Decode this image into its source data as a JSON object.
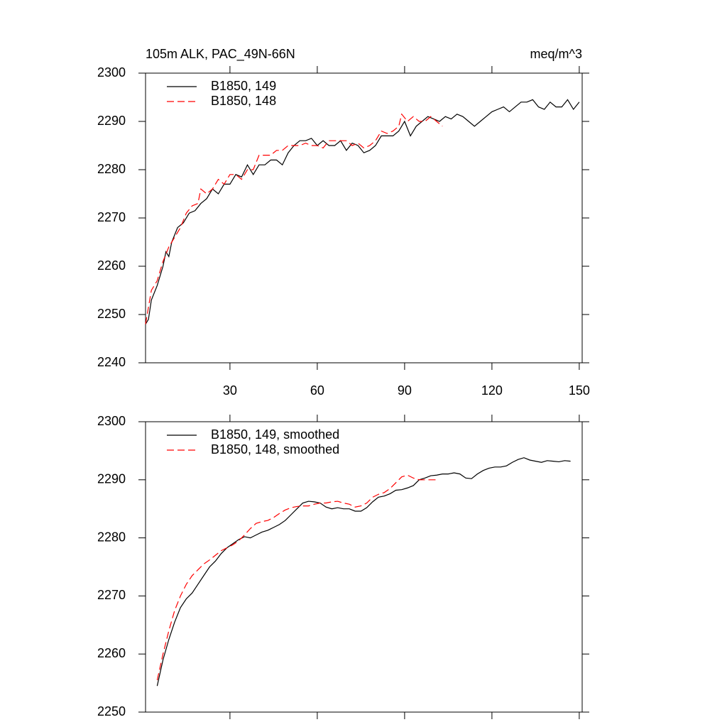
{
  "chart_data": [
    {
      "type": "line",
      "title": "105m ALK, PAC_49N-66N",
      "units": "meq/m^3",
      "legend": "top-left",
      "xlim": [
        1,
        151
      ],
      "xticks": [
        30,
        60,
        90,
        120,
        150
      ],
      "ylim": [
        2240,
        2300
      ],
      "yticks": [
        2240,
        2250,
        2260,
        2270,
        2280,
        2290,
        2300
      ],
      "series": [
        {
          "name": "B1850, 149",
          "color": "#000000",
          "dash": "solid",
          "x": [
            1,
            2,
            3,
            5,
            7,
            8,
            9,
            10,
            12,
            14,
            16,
            18,
            20,
            22,
            24,
            26,
            28,
            30,
            32,
            34,
            36,
            38,
            40,
            42,
            44,
            46,
            48,
            50,
            52,
            54,
            56,
            58,
            60,
            62,
            64,
            66,
            68,
            70,
            72,
            74,
            76,
            78,
            80,
            82,
            84,
            86,
            88,
            90,
            92,
            94,
            96,
            98,
            100,
            102,
            104,
            106,
            108,
            110,
            112,
            114,
            116,
            118,
            120,
            122,
            124,
            126,
            128,
            130,
            132,
            134,
            136,
            138,
            140,
            142,
            144,
            146,
            148,
            150
          ],
          "values": [
            2248,
            2249,
            2253,
            2256,
            2260,
            2263,
            2262,
            2265,
            2268,
            2269,
            2271,
            2271.5,
            2273,
            2274,
            2276,
            2275,
            2277,
            2277,
            2279,
            2278.5,
            2281,
            2279,
            2281,
            2281,
            2282,
            2282,
            2281,
            2283.5,
            2285,
            2286,
            2286,
            2286.5,
            2285,
            2286,
            2285,
            2285,
            2286,
            2284,
            2285.5,
            2285,
            2283.5,
            2284,
            2285,
            2287,
            2287,
            2287,
            2288,
            2290,
            2287,
            2289,
            2290,
            2291,
            2290.5,
            2290,
            2291,
            2290.5,
            2291.5,
            2291,
            2290,
            2289,
            2290,
            2291,
            2292,
            2292.5,
            2293,
            2292,
            2293,
            2294,
            2294,
            2294.5,
            2293,
            2292.5,
            2294,
            2293,
            2293,
            2294.5,
            2292.5,
            2294
          ]
        },
        {
          "name": "B1850, 148",
          "color": "#ff0000",
          "dash": "dashed",
          "x": [
            1,
            3,
            5,
            7,
            9,
            11,
            13,
            15,
            17,
            19,
            20,
            22,
            24,
            26,
            28,
            30,
            32,
            34,
            36,
            38,
            40,
            42,
            44,
            46,
            48,
            50,
            52,
            54,
            56,
            58,
            60,
            62,
            64,
            66,
            68,
            70,
            72,
            74,
            76,
            78,
            80,
            82,
            84,
            86,
            88,
            89,
            91,
            93,
            95,
            97,
            99,
            101,
            103
          ],
          "values": [
            2248,
            2255,
            2257,
            2261,
            2264,
            2266,
            2268,
            2271,
            2272.5,
            2273,
            2276,
            2275,
            2276,
            2278,
            2277,
            2279,
            2279,
            2278,
            2280,
            2280,
            2283,
            2283,
            2283,
            2284,
            2284,
            2285,
            2285,
            2285,
            2285.5,
            2285,
            2285,
            2284.5,
            2286,
            2286,
            2286,
            2286,
            2285,
            2285.5,
            2284.5,
            2285,
            2286,
            2288,
            2287.5,
            2288,
            2289,
            2291.5,
            2290,
            2291,
            2290,
            2290,
            2291,
            2290,
            2289
          ]
        }
      ]
    },
    {
      "type": "line",
      "legend": "top-left",
      "xlim": [
        1,
        151
      ],
      "xticks": [
        30,
        60,
        90,
        120,
        150
      ],
      "ylim": [
        2250,
        2300
      ],
      "yticks": [
        2250,
        2260,
        2270,
        2280,
        2290,
        2300
      ],
      "series": [
        {
          "name": "B1850, 149, smoothed",
          "color": "#000000",
          "dash": "solid",
          "x": [
            5,
            7,
            9,
            11,
            13,
            15,
            17,
            19,
            21,
            23,
            25,
            27,
            29,
            31,
            33,
            35,
            37,
            39,
            41,
            43,
            45,
            47,
            49,
            51,
            53,
            55,
            57,
            59,
            61,
            63,
            65,
            67,
            69,
            71,
            73,
            75,
            77,
            79,
            81,
            83,
            85,
            87,
            89,
            91,
            93,
            95,
            97,
            99,
            101,
            103,
            105,
            107,
            109,
            111,
            113,
            115,
            117,
            119,
            121,
            123,
            125,
            127,
            129,
            131,
            133,
            135,
            137,
            139,
            141,
            143,
            145,
            147
          ],
          "values": [
            2254.5,
            2259,
            2262.5,
            2265.5,
            2268,
            2269.5,
            2270.5,
            2272,
            2273.5,
            2275,
            2276,
            2277.3,
            2278.3,
            2279,
            2279.7,
            2280.2,
            2280,
            2280.5,
            2281,
            2281.3,
            2281.8,
            2282.3,
            2283,
            2284,
            2285,
            2286,
            2286.3,
            2286.2,
            2286,
            2285.3,
            2285,
            2285.2,
            2285,
            2285,
            2284.6,
            2284.6,
            2285.2,
            2286.2,
            2287,
            2287.2,
            2287.6,
            2288.2,
            2288.3,
            2288.6,
            2289,
            2290,
            2290.3,
            2290.7,
            2290.8,
            2291,
            2291,
            2291.2,
            2291,
            2290.3,
            2290.2,
            2291,
            2291.6,
            2292,
            2292.2,
            2292.2,
            2292.4,
            2293,
            2293.5,
            2293.8,
            2293.4,
            2293.2,
            2293,
            2293.3,
            2293.2,
            2293.1,
            2293.3,
            2293.2
          ]
        },
        {
          "name": "B1850, 148, smoothed",
          "color": "#ff0000",
          "dash": "dashed",
          "x": [
            5,
            7,
            9,
            11,
            13,
            15,
            17,
            19,
            21,
            23,
            25,
            27,
            29,
            31,
            33,
            35,
            37,
            39,
            41,
            43,
            45,
            47,
            49,
            51,
            53,
            55,
            57,
            59,
            61,
            63,
            65,
            67,
            69,
            71,
            73,
            75,
            77,
            79,
            81,
            83,
            85,
            87,
            89,
            91,
            93,
            95,
            97,
            99,
            101
          ],
          "values": [
            2255.5,
            2260,
            2264,
            2267.5,
            2270,
            2272,
            2273.5,
            2274.5,
            2275.5,
            2276.2,
            2277,
            2277.8,
            2278.3,
            2278.8,
            2279.5,
            2280.5,
            2281.6,
            2282.5,
            2282.8,
            2283,
            2283.5,
            2284.2,
            2284.8,
            2285.2,
            2285.4,
            2285.5,
            2285.5,
            2285.8,
            2286,
            2286,
            2286.2,
            2286.3,
            2286,
            2285.8,
            2285.3,
            2285.5,
            2286,
            2287,
            2287.5,
            2287.8,
            2288.5,
            2289.5,
            2290.5,
            2290.8,
            2290.3,
            2290,
            2290,
            2290,
            2290
          ]
        }
      ]
    }
  ]
}
